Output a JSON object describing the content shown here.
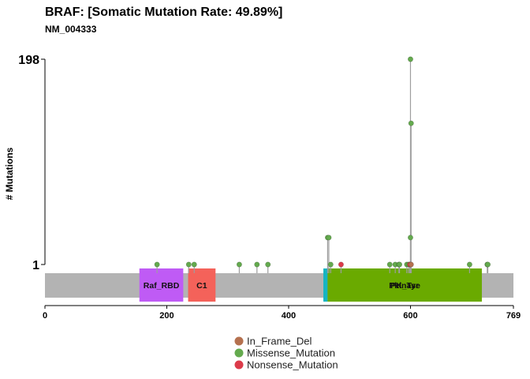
{
  "chart_data": {
    "type": "lollipop",
    "title": "BRAF: [Somatic Mutation Rate: 49.89%]",
    "subtitle": "NM_004333",
    "ylabel": "# Mutations",
    "xlim": [
      0,
      769
    ],
    "xticks": [
      0,
      200,
      400,
      600,
      769
    ],
    "yticks": [
      1,
      198
    ],
    "protein_length": 769,
    "domains": [
      {
        "name": "Raf_RBD",
        "start": 155,
        "end": 227,
        "color": "#bf5bf5"
      },
      {
        "name": "C1",
        "start": 235,
        "end": 280,
        "color": "#f4625a"
      },
      {
        "name": "",
        "start": 457,
        "end": 464,
        "color": "#17b4c2"
      },
      {
        "name": "Pkinase",
        "start": 464,
        "end": 717,
        "color": "#6aaa00"
      },
      {
        "name": "PK_Tyr",
        "start": 464,
        "end": 717,
        "color": "#6aaa00"
      }
    ],
    "mutations": [
      {
        "pos": 184,
        "count": 1,
        "type": "Missense_Mutation"
      },
      {
        "pos": 236,
        "count": 1,
        "type": "Missense_Mutation"
      },
      {
        "pos": 245,
        "count": 1,
        "type": "Missense_Mutation"
      },
      {
        "pos": 319,
        "count": 1,
        "type": "Missense_Mutation"
      },
      {
        "pos": 348,
        "count": 1,
        "type": "Missense_Mutation"
      },
      {
        "pos": 366,
        "count": 1,
        "type": "Missense_Mutation"
      },
      {
        "pos": 464,
        "count": 2,
        "type": "Missense_Mutation"
      },
      {
        "pos": 466,
        "count": 2,
        "type": "Missense_Mutation"
      },
      {
        "pos": 469,
        "count": 1,
        "type": "Missense_Mutation"
      },
      {
        "pos": 486,
        "count": 1,
        "type": "Nonsense_Mutation"
      },
      {
        "pos": 566,
        "count": 1,
        "type": "Missense_Mutation"
      },
      {
        "pos": 575,
        "count": 1,
        "type": "Missense_Mutation"
      },
      {
        "pos": 581,
        "count": 1,
        "type": "Missense_Mutation"
      },
      {
        "pos": 582,
        "count": 1,
        "type": "Missense_Mutation"
      },
      {
        "pos": 594,
        "count": 1,
        "type": "Missense_Mutation"
      },
      {
        "pos": 597,
        "count": 1,
        "type": "Missense_Mutation"
      },
      {
        "pos": 599,
        "count": 1,
        "type": "Nonsense_Mutation"
      },
      {
        "pos": 600,
        "count": 198,
        "type": "Missense_Mutation"
      },
      {
        "pos": 600,
        "count": 2,
        "type": "Missense_Mutation"
      },
      {
        "pos": 601,
        "count": 38,
        "type": "Missense_Mutation"
      },
      {
        "pos": 601,
        "count": 1,
        "type": "In_Frame_Del"
      },
      {
        "pos": 697,
        "count": 1,
        "type": "Missense_Mutation"
      },
      {
        "pos": 726,
        "count": 1,
        "type": "Missense_Mutation"
      },
      {
        "pos": 727,
        "count": 1,
        "type": "Missense_Mutation"
      }
    ],
    "legend": [
      {
        "label": "In_Frame_Del",
        "color": "#b5714f"
      },
      {
        "label": "Missense_Mutation",
        "color": "#64aa4e"
      },
      {
        "label": "Nonsense_Mutation",
        "color": "#dc3b4a"
      }
    ],
    "legend_position": "bottom"
  },
  "colors": {
    "protein_bar": "#b3b3b3",
    "stick": "#9e9e9e",
    "axis": "#000000"
  }
}
